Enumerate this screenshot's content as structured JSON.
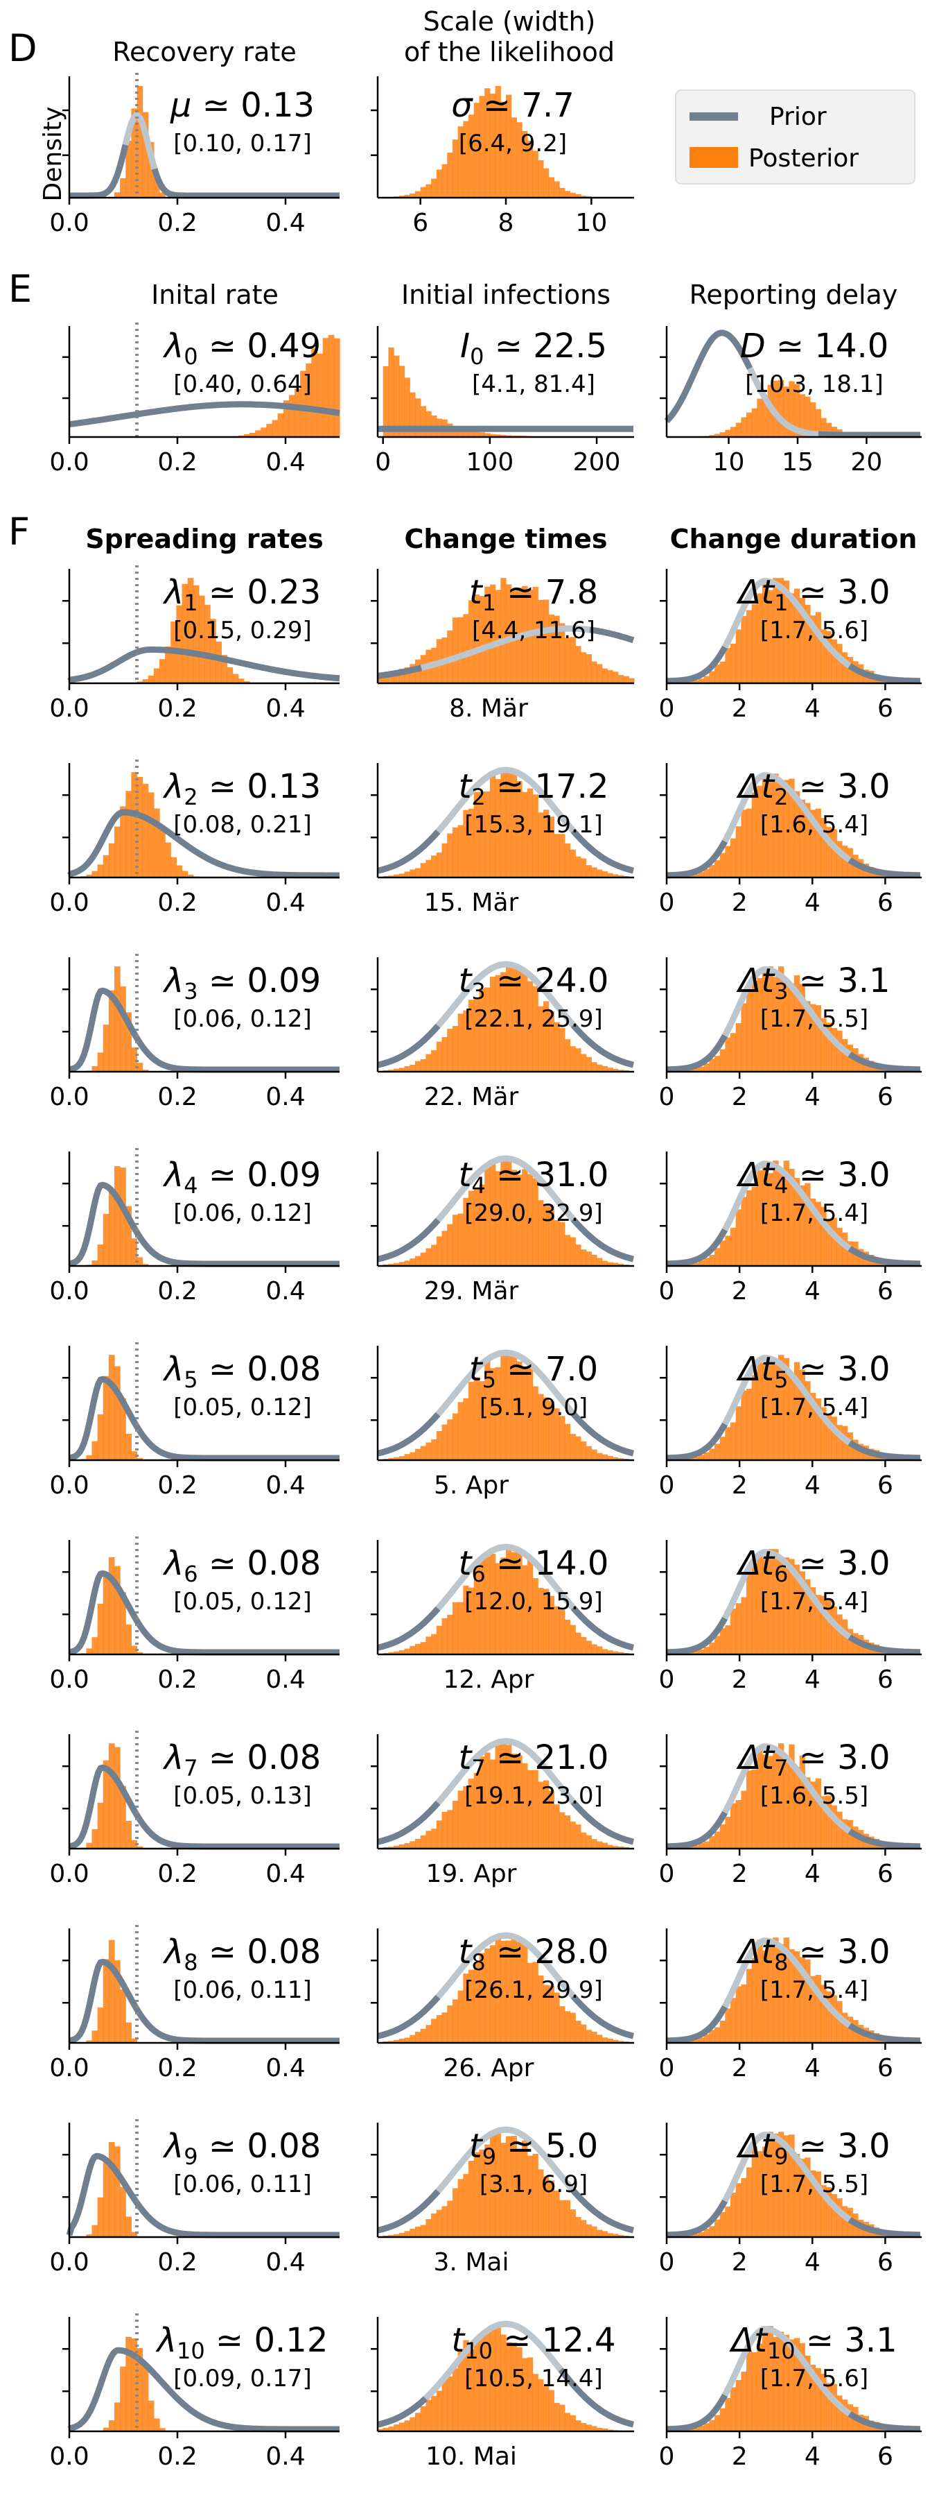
{
  "sections": [
    {
      "letter": "D"
    },
    {
      "letter": "E"
    },
    {
      "letter": "F",
      "headers": [
        "Spreading rates",
        "Change times",
        "Change duration"
      ]
    }
  ],
  "density_label": "Density",
  "legend": {
    "prior": "Prior",
    "posterior": "Posterior",
    "prior_color": "#708090",
    "posterior_color": "#ff7f0e"
  },
  "chart_data": [
    {
      "type": "area",
      "title": "Recovery rate",
      "param": "μ",
      "value": "0.13",
      "ci": "[0.10, 0.17]",
      "xlim": [
        0,
        0.5
      ],
      "xticks": [
        "0.0",
        "0.2",
        "0.4"
      ],
      "xtick_values": [
        0,
        0.2,
        0.4
      ],
      "prior": {
        "mean": 0.125,
        "sd": 0.022
      },
      "posterior": {
        "mean": 0.13,
        "sd": 0.017
      },
      "vline": 0.125
    },
    {
      "type": "area",
      "title": "Scale (width)\nof the likelihood",
      "param": "σ",
      "value": "7.7",
      "ci": "[6.4, 9.2]",
      "xlim": [
        5,
        11
      ],
      "xticks": [
        "6",
        "8",
        "10"
      ],
      "xtick_values": [
        6,
        8,
        10
      ],
      "posterior": {
        "mean": 7.7,
        "sd": 0.75
      }
    },
    {
      "type": "area",
      "title": "Inital rate",
      "param": "λ",
      "sub": "0",
      "value": "0.49",
      "ci": "[0.40, 0.64]",
      "xlim": [
        0,
        0.5
      ],
      "xticks": [
        "0.0",
        "0.2",
        "0.4"
      ],
      "xtick_values": [
        0,
        0.2,
        0.4
      ],
      "prior": {
        "mean": 0.32,
        "sd": 0.22
      },
      "posterior": {
        "mean": 0.49,
        "sd": 0.06
      },
      "vline": 0.125
    },
    {
      "type": "area",
      "title": "Initial infections",
      "param": "I",
      "sub": "0",
      "value": "22.5",
      "ci": "[4.1, 81.4]",
      "xlim": [
        -5,
        235
      ],
      "xticks": [
        "0",
        "100",
        "200"
      ],
      "xtick_values": [
        0,
        100,
        200
      ],
      "prior": {
        "flat": true
      },
      "posterior": {
        "lognormal": true,
        "mean": 22.5,
        "sd": 22
      }
    },
    {
      "type": "area",
      "title": "Reporting delay",
      "param": "D",
      "value": "14.0",
      "ci": "[10.3, 18.1]",
      "xlim": [
        5.5,
        24
      ],
      "xticks": [
        "10",
        "15",
        "20"
      ],
      "xtick_values": [
        10,
        15,
        20
      ],
      "prior": {
        "mean": 9.5,
        "sd": 2.0
      },
      "posterior": {
        "mean": 14.0,
        "sd": 2.0
      }
    },
    {
      "row": 1,
      "lam": {
        "value": "0.23",
        "ci": "[0.15, 0.29]",
        "post_mean": 0.23,
        "post_sd": 0.035,
        "prior_mean": 0.15,
        "prior_sd": 0.1
      },
      "t": {
        "value": "7.8",
        "ci": "[4.4, 11.6]",
        "label": "8. Mär",
        "post_mean": 7.8,
        "post_sd": 2.5,
        "prior_mean": 9,
        "prior_sd": 4
      },
      "dt": {
        "value": "3.0",
        "ci": "[1.7, 5.6]"
      }
    },
    {
      "row": 2,
      "lam": {
        "value": "0.13",
        "ci": "[0.08, 0.21]",
        "post_mean": 0.13,
        "post_sd": 0.035,
        "prior_mean": 0.1,
        "prior_sd": 0.06
      },
      "t": {
        "value": "17.2",
        "ci": "[15.3, 19.1]",
        "label": "15. Mär"
      },
      "dt": {
        "value": "3.0",
        "ci": "[1.6, 5.4]"
      }
    },
    {
      "row": 3,
      "lam": {
        "value": "0.09",
        "ci": "[0.06, 0.12]",
        "post_mean": 0.09,
        "post_sd": 0.018,
        "prior_mean": 0.06,
        "prior_sd": 0.03
      },
      "t": {
        "value": "24.0",
        "ci": "[22.1, 25.9]",
        "label": "22. Mär"
      },
      "dt": {
        "value": "3.1",
        "ci": "[1.7, 5.5]"
      }
    },
    {
      "row": 4,
      "lam": {
        "value": "0.09",
        "ci": "[0.06, 0.12]",
        "post_mean": 0.09,
        "post_sd": 0.018,
        "prior_mean": 0.06,
        "prior_sd": 0.03
      },
      "t": {
        "value": "31.0",
        "ci": "[29.0, 32.9]",
        "label": "29. Mär"
      },
      "dt": {
        "value": "3.0",
        "ci": "[1.7, 5.4]"
      }
    },
    {
      "row": 5,
      "lam": {
        "value": "0.08",
        "ci": "[0.05, 0.12]",
        "post_mean": 0.08,
        "post_sd": 0.018,
        "prior_mean": 0.06,
        "prior_sd": 0.03
      },
      "t": {
        "value": "7.0",
        "ci": "[5.1, 9.0]",
        "label": "5. Apr"
      },
      "dt": {
        "value": "3.0",
        "ci": "[1.7, 5.4]"
      }
    },
    {
      "row": 6,
      "lam": {
        "value": "0.08",
        "ci": "[0.05, 0.12]",
        "post_mean": 0.08,
        "post_sd": 0.018,
        "prior_mean": 0.06,
        "prior_sd": 0.03
      },
      "t": {
        "value": "14.0",
        "ci": "[12.0, 15.9]",
        "label": "12. Apr"
      },
      "dt": {
        "value": "3.0",
        "ci": "[1.7, 5.4]"
      }
    },
    {
      "row": 7,
      "lam": {
        "value": "0.08",
        "ci": "[0.05, 0.13]",
        "post_mean": 0.08,
        "post_sd": 0.018,
        "prior_mean": 0.06,
        "prior_sd": 0.03
      },
      "t": {
        "value": "21.0",
        "ci": "[19.1, 23.0]",
        "label": "19. Apr"
      },
      "dt": {
        "value": "3.0",
        "ci": "[1.6, 5.5]"
      }
    },
    {
      "row": 8,
      "lam": {
        "value": "0.08",
        "ci": "[0.06, 0.11]",
        "post_mean": 0.08,
        "post_sd": 0.016,
        "prior_mean": 0.06,
        "prior_sd": 0.03
      },
      "t": {
        "value": "28.0",
        "ci": "[26.1, 29.9]",
        "label": "26. Apr"
      },
      "dt": {
        "value": "3.0",
        "ci": "[1.7, 5.4]"
      }
    },
    {
      "row": 9,
      "lam": {
        "value": "0.08",
        "ci": "[0.06, 0.11]",
        "post_mean": 0.08,
        "post_sd": 0.016,
        "prior_mean": 0.05,
        "prior_sd": 0.035
      },
      "t": {
        "value": "5.0",
        "ci": "[3.1, 6.9]",
        "label": "3. Mai"
      },
      "dt": {
        "value": "3.0",
        "ci": "[1.7, 5.5]"
      }
    },
    {
      "row": 10,
      "lam": {
        "value": "0.12",
        "ci": "[0.09, 0.17]",
        "post_mean": 0.12,
        "post_sd": 0.02,
        "prior_mean": 0.09,
        "prior_sd": 0.05
      },
      "t": {
        "value": "12.4",
        "ci": "[10.5, 14.4]",
        "label": "10. Mai"
      },
      "dt": {
        "value": "3.1",
        "ci": "[1.7, 5.6]"
      }
    }
  ],
  "lambda_axis": {
    "xlim": [
      0,
      0.5
    ],
    "xticks": [
      "0.0",
      "0.2",
      "0.4"
    ],
    "xtick_values": [
      0,
      0.2,
      0.4
    ],
    "vline": 0.125
  },
  "dt_axis": {
    "xlim": [
      0,
      7
    ],
    "xticks": [
      "0",
      "2",
      "4",
      "6"
    ],
    "xtick_values": [
      0,
      2,
      4,
      6
    ]
  }
}
